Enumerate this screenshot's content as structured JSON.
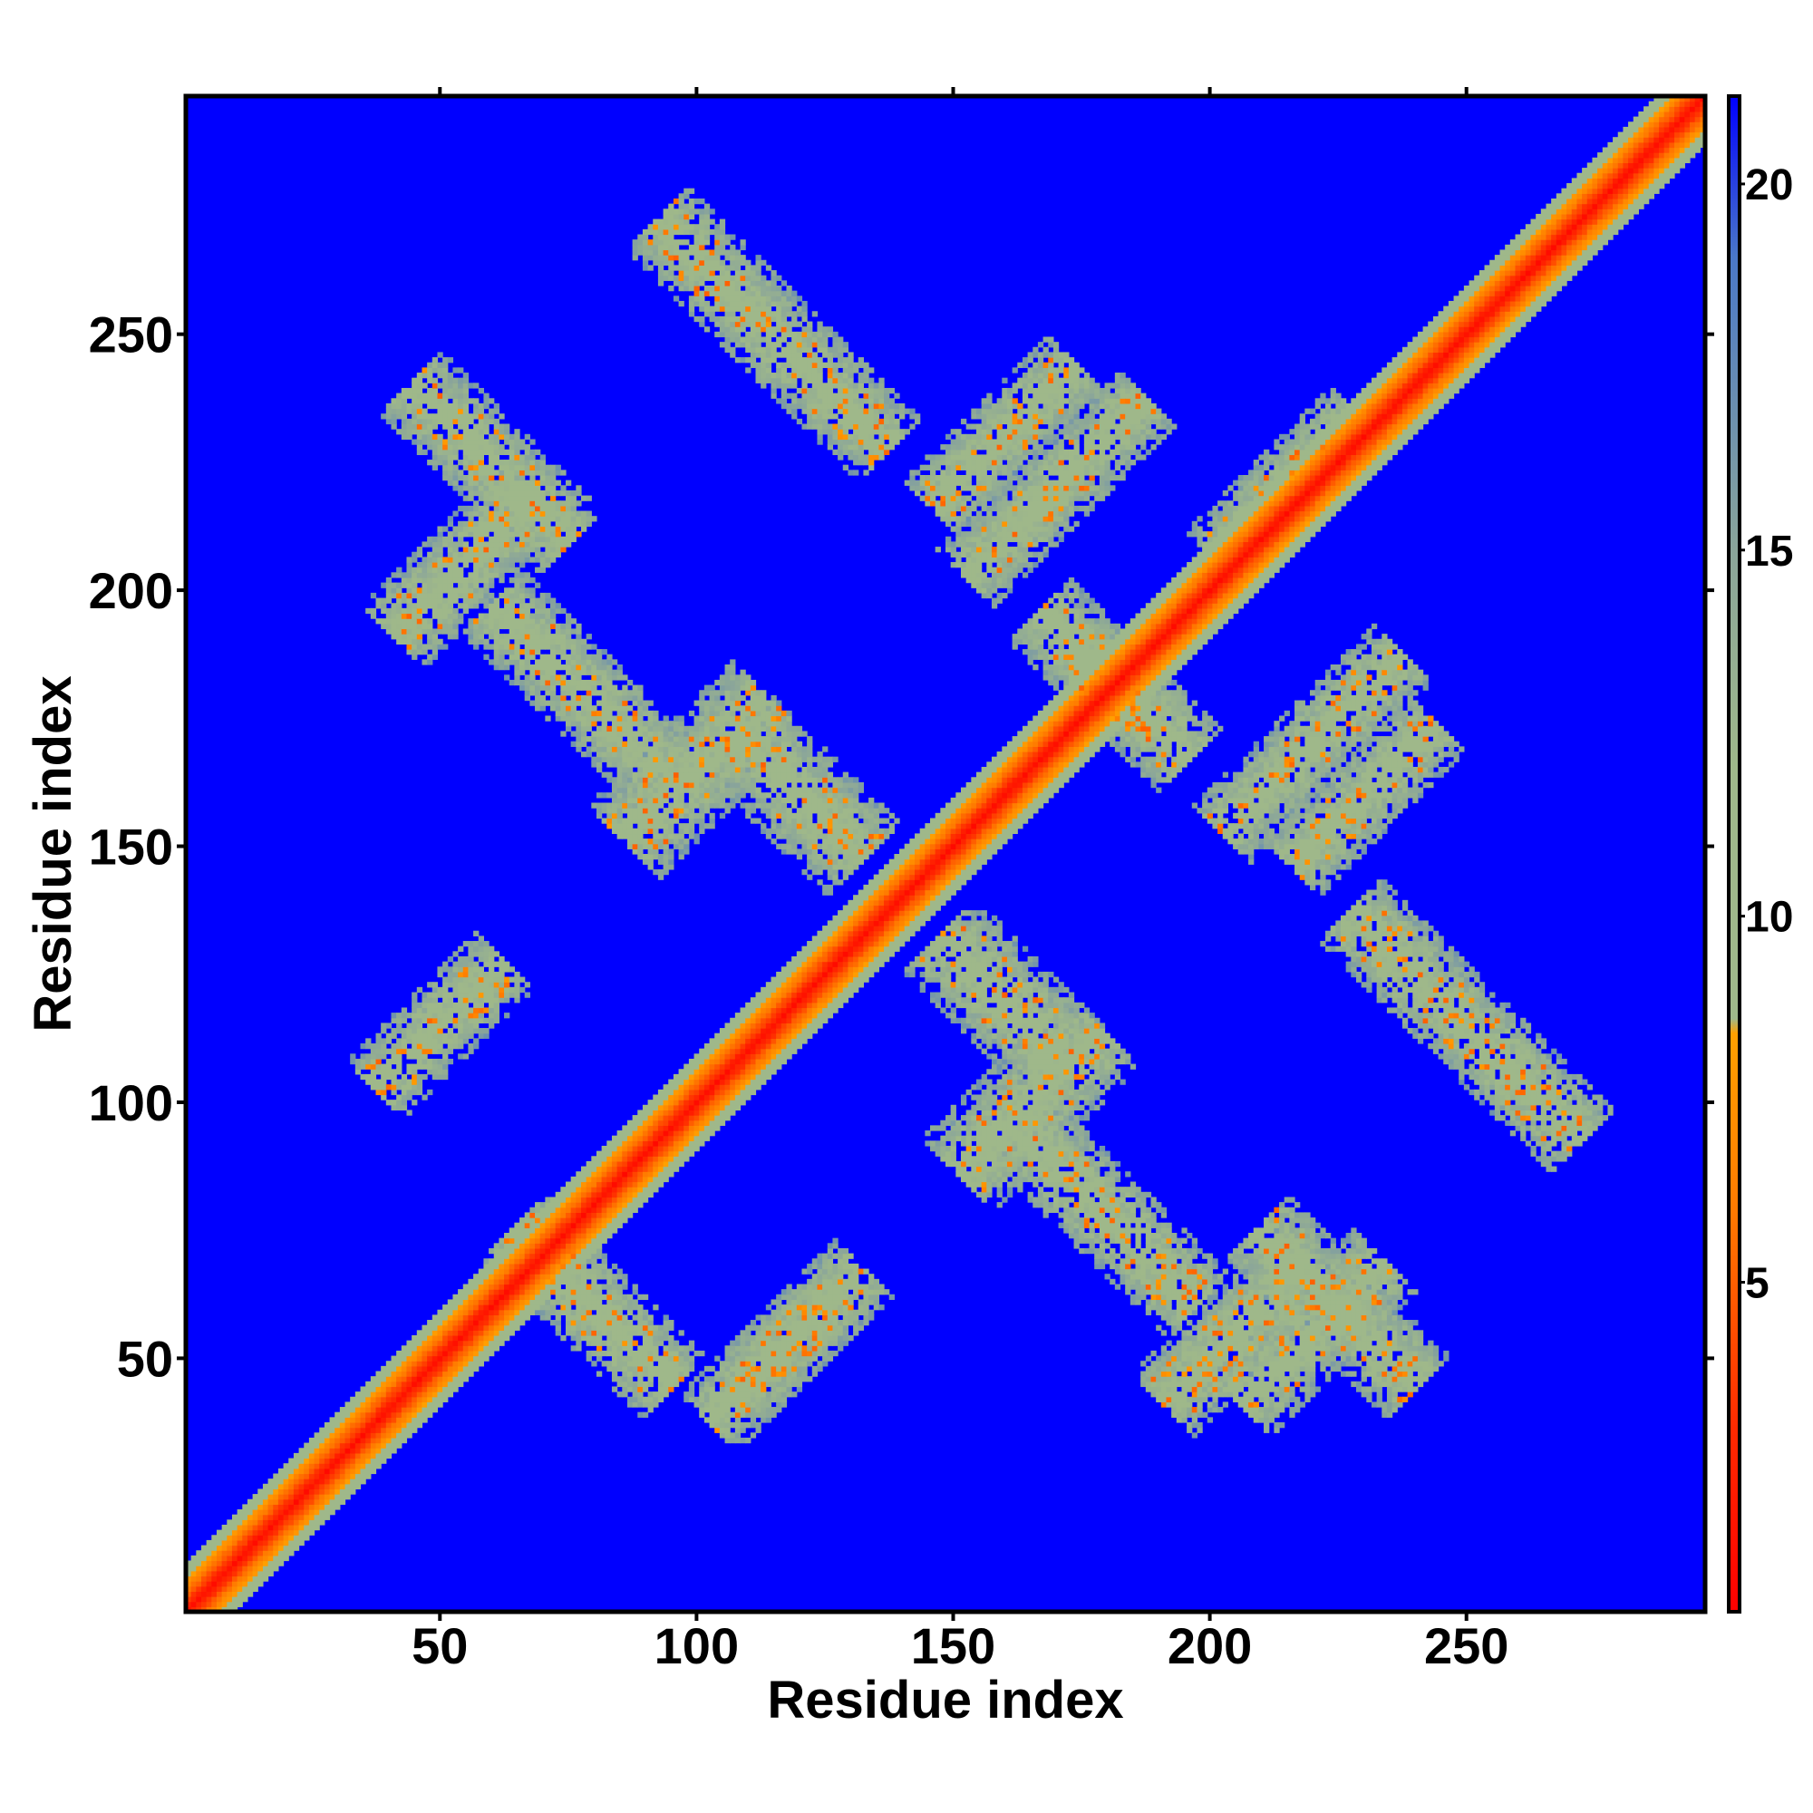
{
  "chart_data": {
    "type": "heatmap",
    "title": "",
    "xlabel": "Residue index",
    "ylabel": "Residue index",
    "xlim": [
      1,
      296
    ],
    "ylim": [
      1,
      296
    ],
    "x_ticks": [
      50,
      100,
      150,
      200,
      250
    ],
    "y_ticks": [
      50,
      100,
      150,
      200,
      250
    ],
    "x_tick_labels": [
      "50",
      "100",
      "150",
      "200",
      "250"
    ],
    "y_tick_labels": [
      "50",
      "100",
      "150",
      "200",
      "250"
    ],
    "colorbar": {
      "range": [
        0.5,
        21.2
      ],
      "ticks": [
        5,
        10,
        15,
        20
      ],
      "tick_labels": [
        "5",
        "10",
        "15",
        "20"
      ],
      "color_stops": [
        {
          "value": 0.5,
          "color": "#ff0000"
        },
        {
          "value": 3.0,
          "color": "#ff2a00"
        },
        {
          "value": 6.0,
          "color": "#ff7a00"
        },
        {
          "value": 8.4,
          "color": "#ffa000"
        },
        {
          "value": 8.6,
          "color": "#9fb88a"
        },
        {
          "value": 12.0,
          "color": "#9fb88a"
        },
        {
          "value": 15.0,
          "color": "#8aa59a"
        },
        {
          "value": 19.0,
          "color": "#4a78c8"
        },
        {
          "value": 21.2,
          "color": "#0000ff"
        }
      ]
    },
    "background_value": 21,
    "background_color": "#0000ff",
    "structure": {
      "diagonal_band": {
        "from": 1,
        "to": 296,
        "half_width": 7
      },
      "contact_bands": [
        {
          "orientation": "anti",
          "center": [
            78,
            180
          ],
          "half_length": 25,
          "half_width": 9
        },
        {
          "orientation": "anti",
          "center": [
            60,
            225
          ],
          "half_length": 22,
          "half_width": 9
        },
        {
          "orientation": "parallel",
          "center": [
            55,
            205
          ],
          "half_length": 20,
          "half_width": 9
        },
        {
          "orientation": "parallel",
          "center": [
            100,
            165
          ],
          "half_length": 20,
          "half_width": 10
        },
        {
          "orientation": "anti",
          "center": [
            120,
            160
          ],
          "half_length": 18,
          "half_width": 10
        },
        {
          "orientation": "anti",
          "center": [
            115,
            250
          ],
          "half_length": 32,
          "half_width": 9
        },
        {
          "orientation": "parallel",
          "center": [
            170,
            220
          ],
          "half_length": 25,
          "half_width": 8
        },
        {
          "orientation": "parallel",
          "center": [
            215,
            220
          ],
          "half_length": 20,
          "half_width": 8
        },
        {
          "orientation": "anti",
          "center": [
            178,
            185
          ],
          "half_length": 16,
          "half_width": 9
        },
        {
          "orientation": "parallel",
          "center": [
            230,
            160
          ],
          "half_length": 20,
          "half_width": 8
        },
        {
          "orientation": "parallel",
          "center": [
            50,
            115
          ],
          "half_length": 18,
          "half_width": 8
        },
        {
          "orientation": "anti",
          "center": [
            80,
            60
          ],
          "half_length": 22,
          "half_width": 9
        },
        {
          "orientation": "parallel",
          "center": [
            120,
            55
          ],
          "half_length": 18,
          "half_width": 8
        },
        {
          "orientation": "anti",
          "center": [
            160,
            120
          ],
          "half_length": 18,
          "half_width": 10
        },
        {
          "orientation": "parallel",
          "center": [
            165,
            100
          ],
          "half_length": 20,
          "half_width": 10
        },
        {
          "orientation": "anti",
          "center": [
            180,
            78
          ],
          "half_length": 25,
          "half_width": 9
        },
        {
          "orientation": "parallel",
          "center": [
            220,
            55
          ],
          "half_length": 20,
          "half_width": 9
        },
        {
          "orientation": "anti",
          "center": [
            225,
            60
          ],
          "half_length": 22,
          "half_width": 9
        },
        {
          "orientation": "anti",
          "center": [
            250,
            115
          ],
          "half_length": 32,
          "half_width": 9
        },
        {
          "orientation": "parallel",
          "center": [
            220,
            170
          ],
          "half_length": 25,
          "half_width": 8
        },
        {
          "orientation": "parallel",
          "center": [
            160,
            230
          ],
          "half_length": 20,
          "half_width": 8
        },
        {
          "orientation": "anti",
          "center": [
            185,
            178
          ],
          "half_length": 16,
          "half_width": 9
        },
        {
          "orientation": "parallel",
          "center": [
            205,
            55
          ],
          "half_length": 20,
          "half_width": 9
        },
        {
          "orientation": "parallel",
          "center": [
            115,
            50
          ],
          "half_length": 18,
          "half_width": 8
        }
      ]
    },
    "grid": false,
    "legend": "colorbar-right"
  }
}
